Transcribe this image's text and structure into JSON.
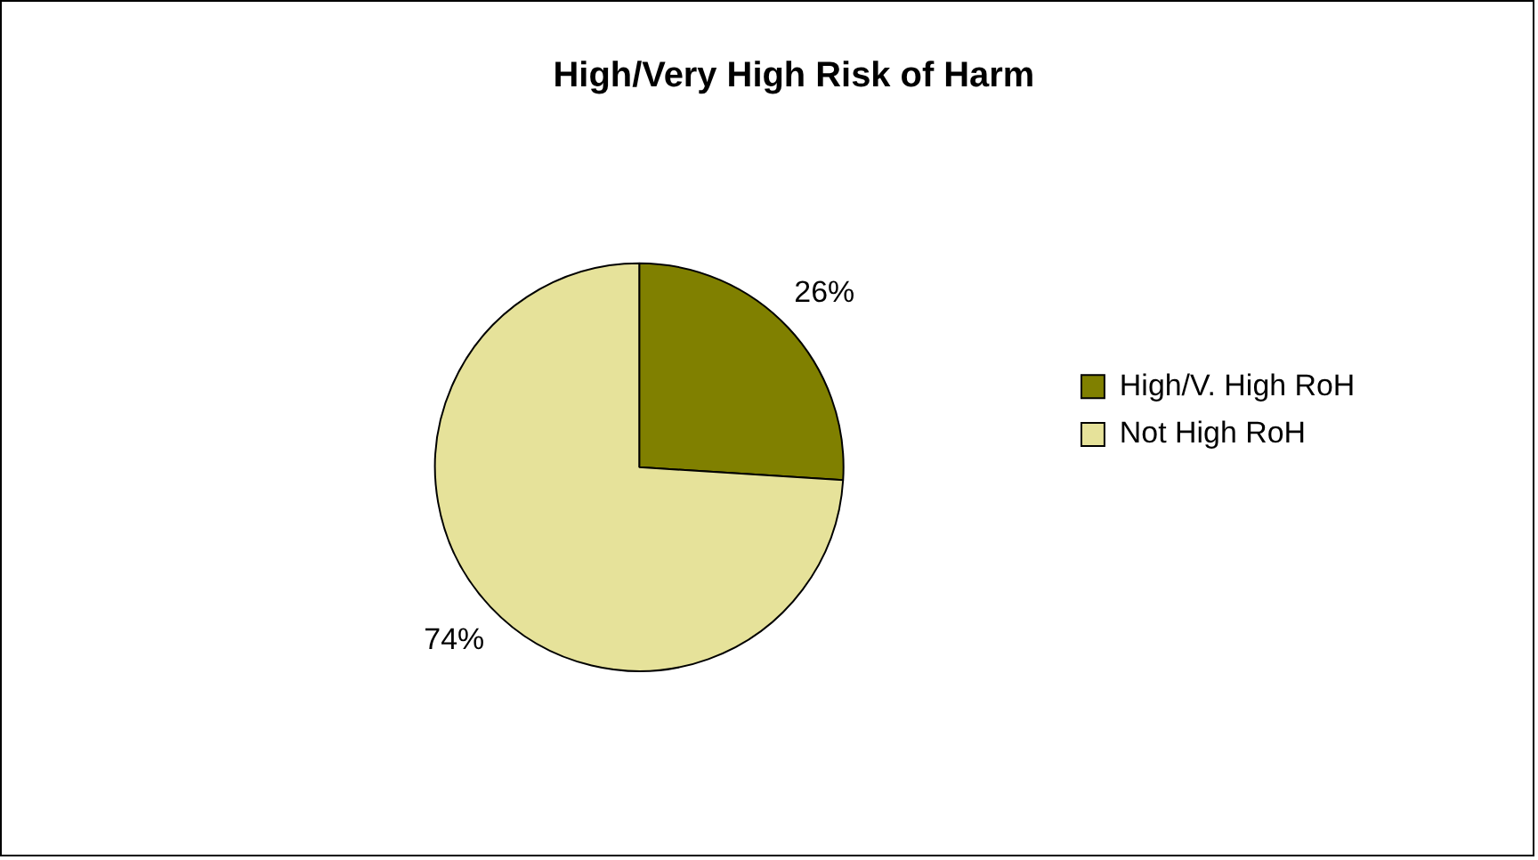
{
  "chart_data": {
    "type": "pie",
    "title": "High/Very High Risk of Harm",
    "categories": [
      "High/V. High RoH",
      "Not High RoH"
    ],
    "values": [
      26,
      74
    ],
    "colors": [
      "#808000",
      "#e6e29a"
    ],
    "value_labels": [
      "26%",
      "74%"
    ],
    "legend": "right"
  }
}
